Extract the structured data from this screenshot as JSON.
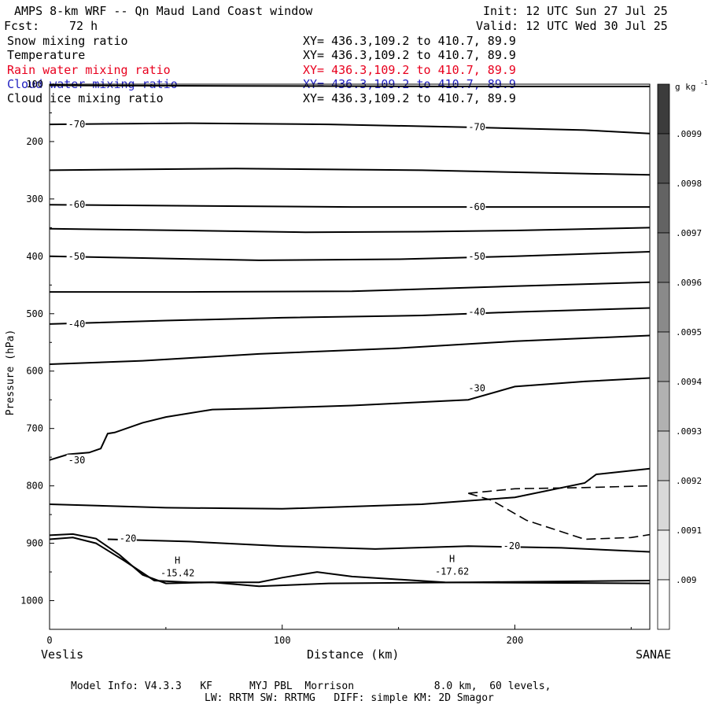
{
  "header": {
    "title": "AMPS 8-km WRF -- Qn Maud Land Coast window",
    "forecast_label": "Fcst:",
    "forecast_hours": "72 h",
    "init": "Init: 12 UTC Sun 27 Jul 25",
    "valid": "Valid: 12 UTC Wed 30 Jul 25"
  },
  "fields": [
    {
      "name": "Snow mixing ratio",
      "xy": "XY= 436.3,109.2 to 410.7, 89.9",
      "color": "#000000"
    },
    {
      "name": "Temperature",
      "xy": "XY= 436.3,109.2 to 410.7, 89.9",
      "color": "#000000"
    },
    {
      "name": "Rain water mixing ratio",
      "xy": "XY= 436.3,109.2 to 410.7, 89.9",
      "color": "#e8001e"
    },
    {
      "name": "Cloud water mixing ratio",
      "xy": "XY= 436.3,109.2 to 410.7, 89.9",
      "color": "#2020c0"
    },
    {
      "name": "Cloud ice mixing ratio",
      "xy": "XY= 436.3,109.2 to 410.7, 89.9",
      "color": "#000000"
    }
  ],
  "footer": {
    "line1": "Model Info: V4.3.3   KF      MYJ PBL  Morrison             8.0 km,  60 levels,",
    "line2": "LW: RRTM SW: RRTMG   DIFF: simple KM: 2D Smagor"
  },
  "chart_data": {
    "type": "line",
    "xlabel": "Distance (km)",
    "ylabel": "Pressure (hPa)",
    "xlim": [
      0,
      258
    ],
    "ylim": [
      1050,
      100
    ],
    "x_ticks": [
      0,
      100,
      200
    ],
    "y_ticks": [
      100,
      200,
      300,
      400,
      500,
      600,
      700,
      800,
      900,
      1000
    ],
    "x_endpoints": {
      "left": "Veslis",
      "right": "SANAE"
    },
    "colorbar": {
      "unit": "g kg",
      "unit_exponent": "-1",
      "labels": [
        ".0099",
        ".0098",
        ".0097",
        ".0096",
        ".0095",
        ".0094",
        ".0093",
        ".0092",
        ".0091",
        ".009"
      ]
    },
    "isotherms": [
      {
        "points": [
          [
            0,
            102
          ],
          [
            80,
            103
          ],
          [
            170,
            104
          ],
          [
            258,
            104
          ]
        ]
      },
      {
        "points": [
          [
            0,
            170
          ],
          [
            60,
            168
          ],
          [
            120,
            170
          ],
          [
            180,
            175
          ],
          [
            230,
            180
          ],
          [
            258,
            186
          ]
        ],
        "labels": [
          {
            "text": "-70",
            "x": 8,
            "p": 170
          },
          {
            "text": "-70",
            "x": 180,
            "p": 175
          }
        ]
      },
      {
        "points": [
          [
            0,
            250
          ],
          [
            80,
            247
          ],
          [
            160,
            250
          ],
          [
            220,
            255
          ],
          [
            258,
            258
          ]
        ]
      },
      {
        "points": [
          [
            0,
            310
          ],
          [
            60,
            312
          ],
          [
            130,
            314
          ],
          [
            200,
            314
          ],
          [
            258,
            314
          ]
        ],
        "labels": [
          {
            "text": "-60",
            "x": 8,
            "p": 310
          },
          {
            "text": "-60",
            "x": 180,
            "p": 314
          }
        ]
      },
      {
        "points": [
          [
            0,
            352
          ],
          [
            60,
            355
          ],
          [
            110,
            358
          ],
          [
            160,
            357
          ],
          [
            200,
            355
          ],
          [
            258,
            350
          ]
        ]
      },
      {
        "points": [
          [
            0,
            400
          ],
          [
            40,
            403
          ],
          [
            90,
            407
          ],
          [
            150,
            405
          ],
          [
            200,
            400
          ],
          [
            258,
            392
          ]
        ],
        "labels": [
          {
            "text": "-50",
            "x": 8,
            "p": 400
          },
          {
            "text": "-50",
            "x": 180,
            "p": 400
          }
        ]
      },
      {
        "points": [
          [
            0,
            462
          ],
          [
            60,
            462
          ],
          [
            130,
            461
          ],
          [
            200,
            452
          ],
          [
            258,
            445
          ]
        ]
      },
      {
        "points": [
          [
            0,
            518
          ],
          [
            50,
            512
          ],
          [
            100,
            507
          ],
          [
            160,
            503
          ],
          [
            200,
            497
          ],
          [
            258,
            490
          ]
        ],
        "labels": [
          {
            "text": "-40",
            "x": 8,
            "p": 518
          },
          {
            "text": "-40",
            "x": 180,
            "p": 497
          }
        ]
      },
      {
        "points": [
          [
            0,
            588
          ],
          [
            40,
            582
          ],
          [
            90,
            570
          ],
          [
            150,
            560
          ],
          [
            200,
            548
          ],
          [
            258,
            538
          ]
        ]
      },
      {
        "points": [
          [
            0,
            755
          ],
          [
            8,
            745
          ],
          [
            17,
            742
          ],
          [
            22,
            735
          ],
          [
            25,
            709
          ],
          [
            28,
            707
          ],
          [
            40,
            690
          ],
          [
            50,
            680
          ],
          [
            70,
            667
          ],
          [
            90,
            665
          ],
          [
            130,
            660
          ],
          [
            180,
            650
          ],
          [
            200,
            627
          ],
          [
            230,
            618
          ],
          [
            258,
            612
          ]
        ],
        "labels": [
          {
            "text": "-30",
            "x": 8,
            "p": 755
          },
          {
            "text": "-30",
            "x": 180,
            "p": 630
          }
        ]
      },
      {
        "points": [
          [
            0,
            832
          ],
          [
            50,
            838
          ],
          [
            100,
            840
          ],
          [
            160,
            832
          ],
          [
            200,
            820
          ],
          [
            230,
            795
          ],
          [
            235,
            780
          ],
          [
            258,
            770
          ]
        ]
      },
      {
        "points": [
          [
            25,
            893
          ],
          [
            60,
            897
          ],
          [
            100,
            905
          ],
          [
            140,
            910
          ],
          [
            180,
            905
          ],
          [
            220,
            908
          ],
          [
            258,
            915
          ]
        ],
        "labels": [
          {
            "text": "-20",
            "x": 30,
            "p": 892
          },
          {
            "text": "-20",
            "x": 195,
            "p": 905
          }
        ]
      },
      {
        "points": [
          [
            0,
            886
          ],
          [
            10,
            884
          ],
          [
            20,
            892
          ],
          [
            30,
            920
          ],
          [
            40,
            955
          ],
          [
            50,
            970
          ],
          [
            70,
            968
          ],
          [
            90,
            975
          ],
          [
            120,
            970
          ],
          [
            180,
            968
          ],
          [
            258,
            965
          ]
        ]
      },
      {
        "points": [
          [
            0,
            893
          ],
          [
            10,
            890
          ],
          [
            20,
            900
          ],
          [
            32,
            930
          ],
          [
            45,
            965
          ],
          [
            60,
            968
          ],
          [
            90,
            968
          ],
          [
            100,
            960
          ],
          [
            115,
            950
          ],
          [
            130,
            958
          ],
          [
            170,
            968
          ],
          [
            258,
            970
          ]
        ]
      }
    ],
    "dashed_contours": [
      {
        "points": [
          [
            180,
            813
          ],
          [
            200,
            805
          ],
          [
            230,
            803
          ],
          [
            258,
            800
          ]
        ]
      },
      {
        "points": [
          [
            180,
            813
          ],
          [
            190,
            825
          ],
          [
            205,
            860
          ],
          [
            230,
            893
          ],
          [
            250,
            890
          ],
          [
            258,
            885
          ]
        ]
      }
    ],
    "highs": [
      {
        "label": "H",
        "value": "-15.42",
        "x": 55,
        "p": 955
      },
      {
        "label": "H",
        "value": "-17.62",
        "x": 173,
        "p": 952
      }
    ]
  }
}
